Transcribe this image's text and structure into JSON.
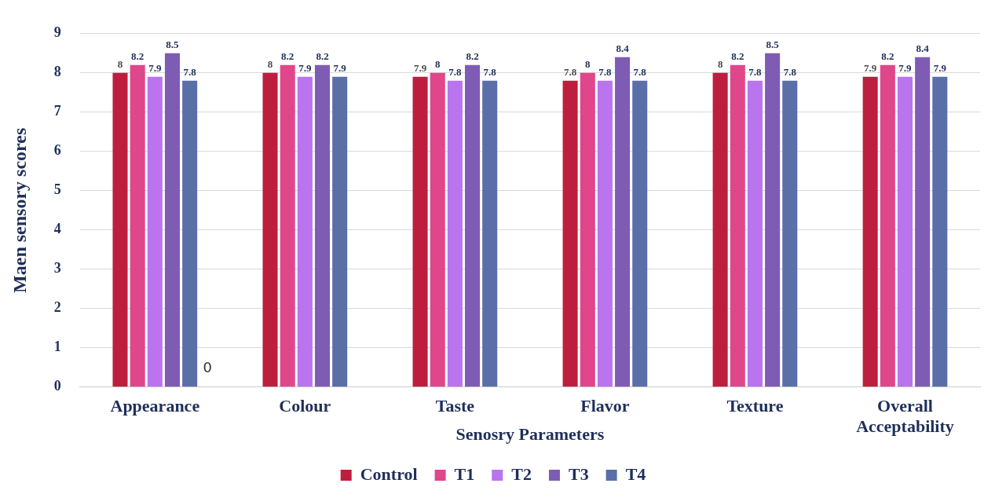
{
  "chart_data": {
    "type": "bar",
    "xlabel": "Senosry Parameters",
    "ylabel": "Maen sensory scores",
    "categories": [
      "Appearance",
      "Colour",
      "Taste",
      "Flavor",
      "Texture",
      "Overall Acceptability"
    ],
    "series": [
      {
        "name": "Control",
        "color": "#be1e3e",
        "values": [
          8,
          8,
          7.9,
          7.8,
          8,
          7.9
        ]
      },
      {
        "name": "T1",
        "color": "#e0468a",
        "values": [
          8.2,
          8.2,
          8,
          8,
          8.2,
          8.2
        ]
      },
      {
        "name": "T2",
        "color": "#b974ee",
        "values": [
          7.9,
          7.9,
          7.8,
          7.8,
          7.8,
          7.9
        ]
      },
      {
        "name": "T3",
        "color": "#7e5cb4",
        "values": [
          8.5,
          8.2,
          8.2,
          8.4,
          8.5,
          8.4
        ]
      },
      {
        "name": "T4",
        "color": "#5a6fa8",
        "values": [
          7.8,
          7.9,
          7.8,
          7.8,
          7.8,
          7.9
        ]
      }
    ],
    "ylim": [
      0,
      9
    ],
    "yticks": [
      0,
      1,
      2,
      3,
      4,
      5,
      6,
      7,
      8,
      9
    ],
    "grid": "y",
    "legend": "bottom",
    "data_labels": true,
    "annotations": [
      "0"
    ]
  }
}
